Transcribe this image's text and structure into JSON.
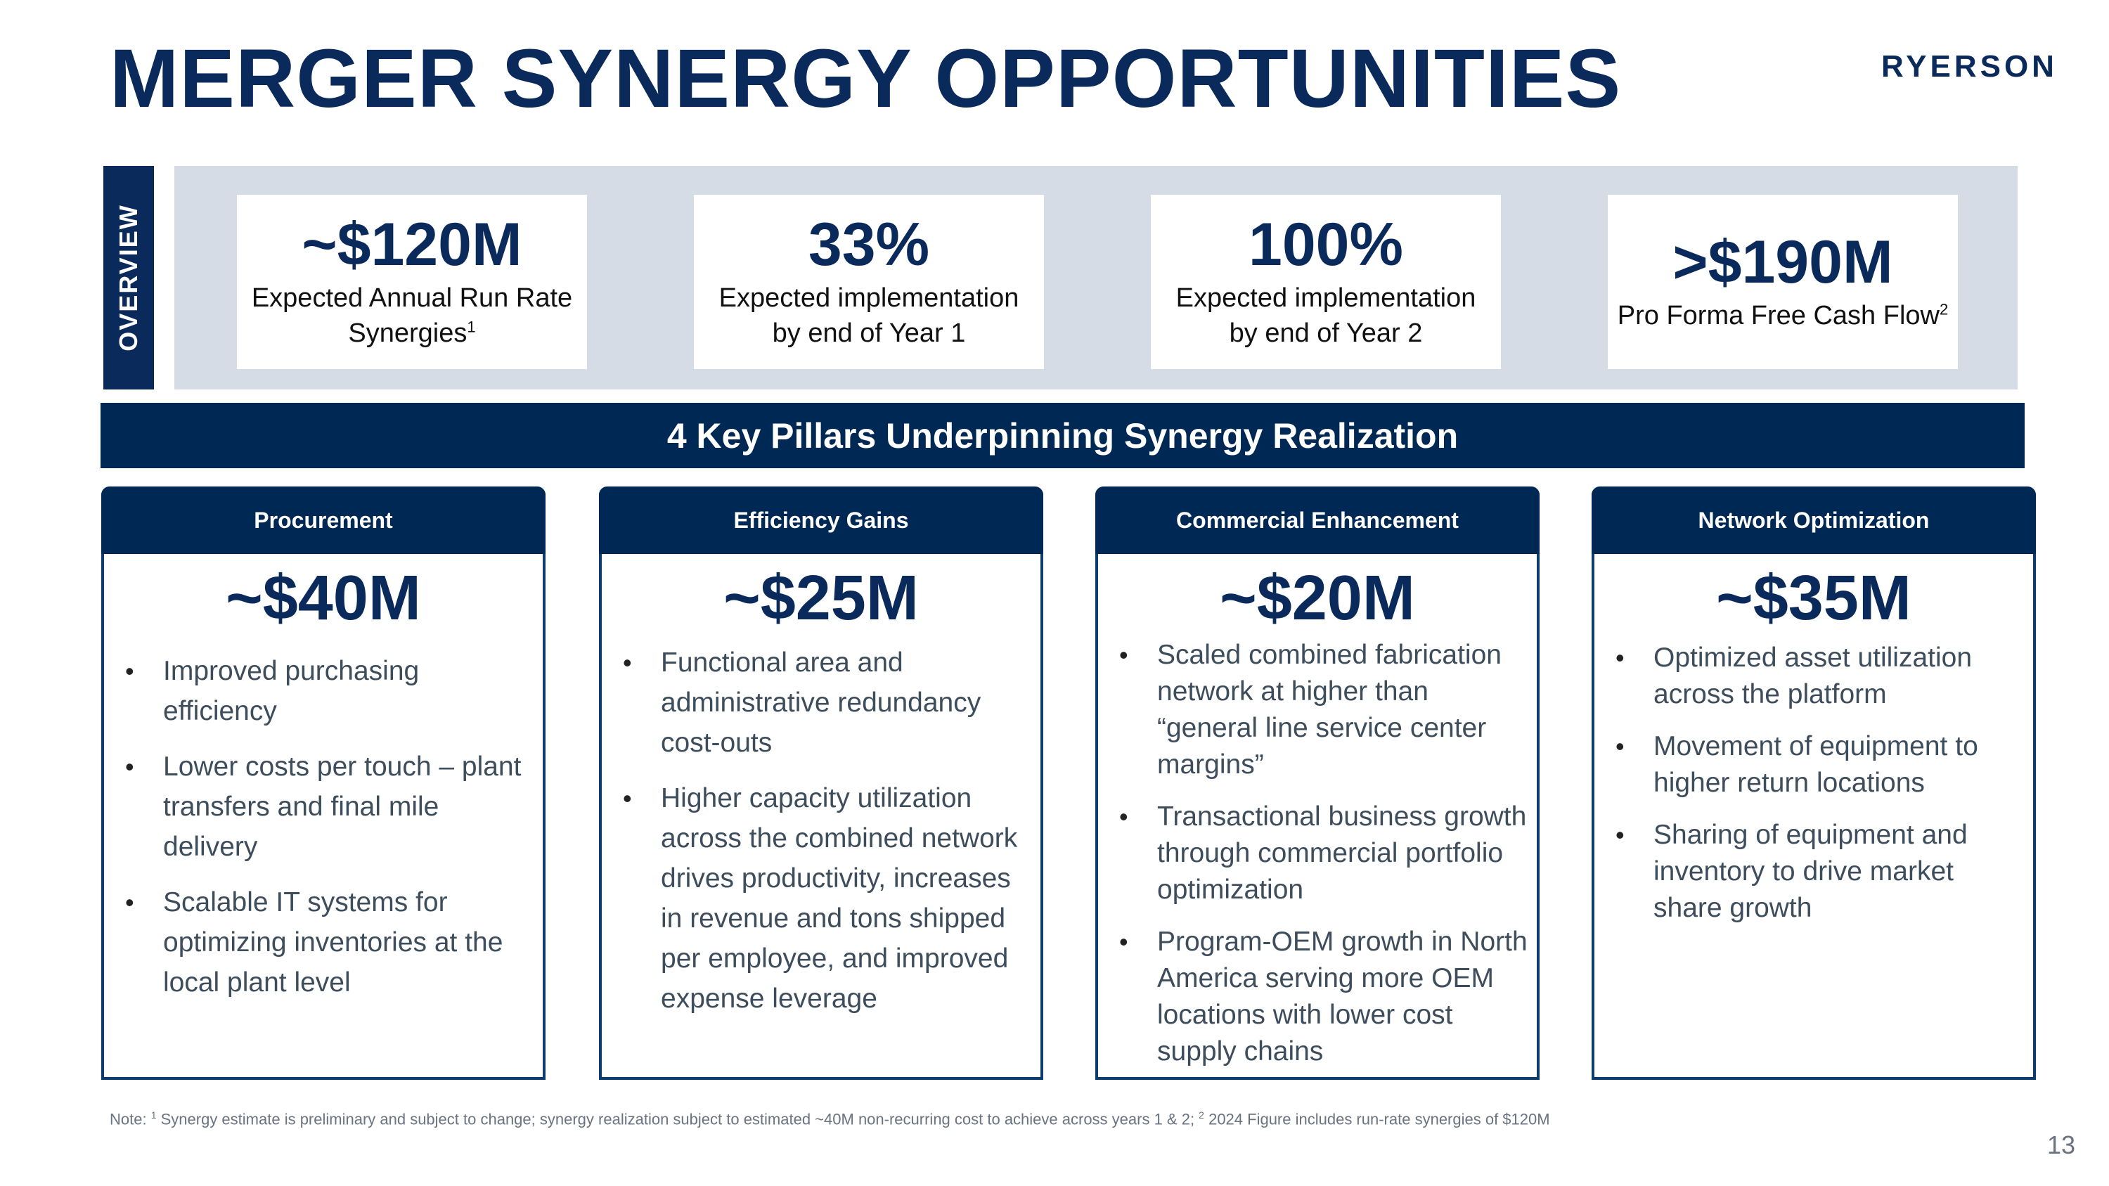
{
  "header": {
    "title": "MERGER SYNERGY OPPORTUNITIES",
    "logo": "RYERSON"
  },
  "overview": {
    "tab_label": "OVERVIEW",
    "kpis": [
      {
        "value": "~$120M",
        "label": "Expected Annual Run Rate Synergies",
        "sup": "1"
      },
      {
        "value": "33%",
        "label_line1": "Expected implementation",
        "label_line2": "by end of Year 1"
      },
      {
        "value": "100%",
        "label_line1": "Expected implementation",
        "label_line2": "by end of Year 2"
      },
      {
        "value": ">$190M",
        "label": "Pro Forma Free Cash Flow",
        "sup": "2"
      }
    ]
  },
  "pillars_banner": "4 Key Pillars Underpinning Synergy Realization",
  "pillars": [
    {
      "title": "Procurement",
      "value": "~$40M",
      "bullets": [
        "Improved purchasing efficiency",
        "Lower costs per touch – plant transfers and final mile delivery",
        "Scalable IT systems for optimizing inventories at the local plant level"
      ]
    },
    {
      "title": "Efficiency Gains",
      "value": "~$25M",
      "bullets": [
        "Functional area and administrative redundancy cost-outs",
        "Higher capacity utilization across the combined network drives productivity, increases in revenue and tons shipped per employee, and improved expense leverage"
      ]
    },
    {
      "title": "Commercial Enhancement",
      "value": "~$20M",
      "bullets": [
        "Scaled combined fabrication network at higher than “general line service center margins”",
        "Transactional business growth through commercial portfolio optimization",
        "Program-OEM growth in North America serving more OEM locations with lower cost supply chains"
      ]
    },
    {
      "title": "Network Optimization",
      "value": "~$35M",
      "bullets": [
        "Optimized asset utilization across the platform",
        "Movement of equipment to higher return locations",
        "Sharing of equipment and inventory to drive market share growth"
      ]
    }
  ],
  "footnote": {
    "prefix": "Note: ",
    "sup1": "1",
    "text1": " Synergy estimate is preliminary and subject to change; synergy realization subject to estimated ~40M non-recurring cost to achieve across years 1 & 2;  ",
    "sup2": "2",
    "text2": " 2024 Figure includes run-rate synergies of $120M"
  },
  "page_number": "13"
}
